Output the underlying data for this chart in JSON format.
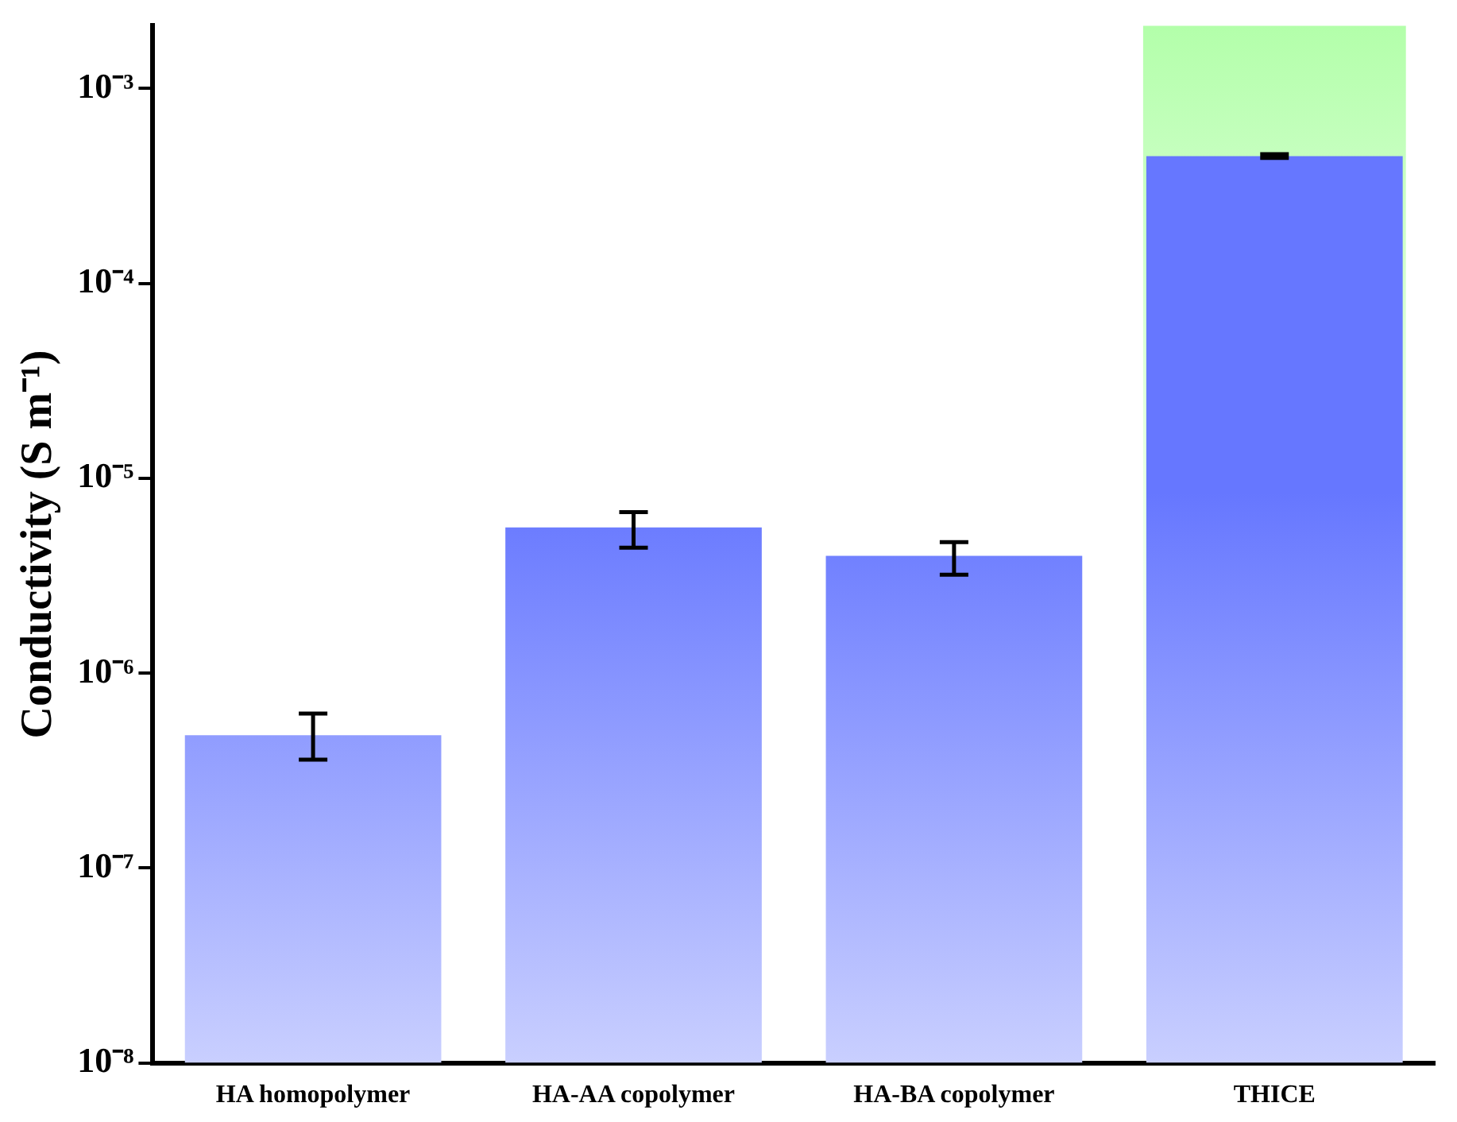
{
  "chart_data": {
    "type": "bar",
    "ylabel": "Conductivity (S m⁻¹)",
    "categories": [
      "HA homopolymer",
      "HA-AA copolymer",
      "HA-BA copolymer",
      "THICE"
    ],
    "values": [
      4.8e-07,
      5.6e-06,
      4e-06,
      0.00045
    ],
    "errors": [
      [
        3.6e-07,
        6.2e-07
      ],
      [
        4.4e-06,
        6.7e-06
      ],
      [
        3.2e-06,
        4.7e-06
      ],
      [
        0.00044,
        0.00046
      ]
    ],
    "color": "#6677ff",
    "log": true,
    "ylim": [
      1e-08,
      0.0021
    ],
    "yticks": [
      {
        "value": 1e-08,
        "label": "10⁻⁸"
      },
      {
        "value": 1e-07,
        "label": "10⁻⁷"
      },
      {
        "value": 1e-06,
        "label": "10⁻⁶"
      },
      {
        "value": 1e-05,
        "label": "10⁻⁵"
      },
      {
        "value": 0.0001,
        "label": "10⁻⁴"
      },
      {
        "value": 0.001,
        "label": "10⁻³"
      }
    ],
    "bands": [
      {
        "axis": "x",
        "from": "THICE",
        "to": "THICE",
        "color": "#b3ffaa"
      }
    ],
    "grid": false,
    "legend": false
  }
}
